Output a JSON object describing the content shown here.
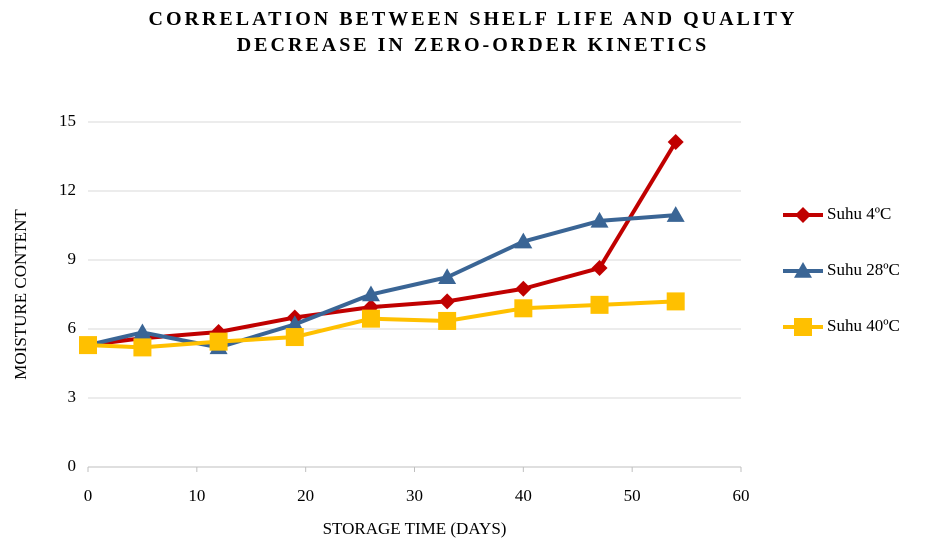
{
  "chart_data": {
    "type": "line",
    "title": "CORRELATION BETWEEN SHELF LIFE AND QUALITY DECREASE IN ZERO-ORDER KINETICS",
    "x_label": "STORAGE TIME (DAYS)",
    "y_label": "MOISTURE CONTENT",
    "x": [
      0,
      5,
      12,
      19,
      26,
      33,
      40,
      47,
      54
    ],
    "series": [
      {
        "name": "Suhu 4ºC",
        "color": "#c00000",
        "marker": "diamond",
        "values": [
          5.3,
          5.6,
          5.87,
          6.5,
          6.95,
          7.2,
          7.75,
          8.65,
          14.13
        ]
      },
      {
        "name": "Suhu 28ºC",
        "color": "#3a6595",
        "marker": "triangle",
        "values": [
          5.3,
          5.85,
          5.2,
          6.2,
          7.5,
          8.25,
          9.8,
          10.7,
          10.95
        ]
      },
      {
        "name": "Suhu 40ºC",
        "color": "#ffc000",
        "marker": "square",
        "values": [
          5.3,
          5.2,
          5.45,
          5.65,
          6.45,
          6.35,
          6.9,
          7.05,
          7.2
        ]
      }
    ],
    "xlim": [
      0,
      60
    ],
    "xticks": [
      0,
      10,
      20,
      30,
      40,
      50,
      60
    ],
    "ylim": [
      0,
      15
    ],
    "yticks": [
      0,
      3,
      6,
      9,
      12,
      15
    ],
    "grid": true,
    "legend": "right"
  }
}
